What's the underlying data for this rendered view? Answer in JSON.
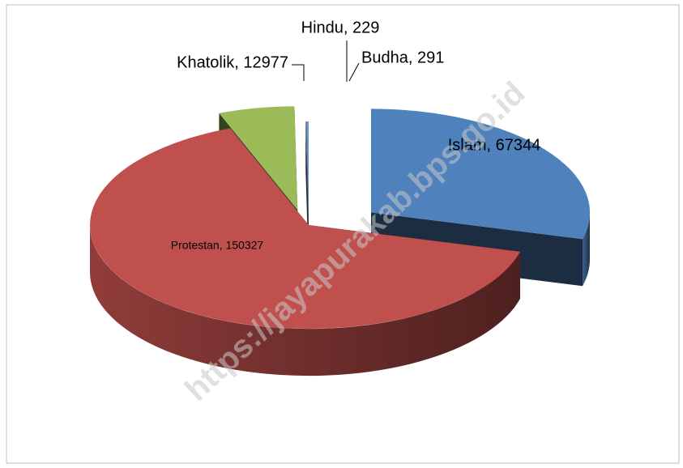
{
  "chart_data": {
    "type": "pie",
    "values": [
      67344,
      150327,
      12977,
      229,
      291
    ],
    "value_labels": [
      "Islam, 67344",
      "Protestan, 150327",
      "Khatolik, 12977",
      "Hindu, 229",
      "Budha, 291"
    ],
    "colors": [
      "#4f81bd",
      "#c0504d",
      "#9bbb59",
      "#8064a2",
      "#4bacc6"
    ],
    "watermark": "https://jayapurakab.bps.go.id"
  }
}
